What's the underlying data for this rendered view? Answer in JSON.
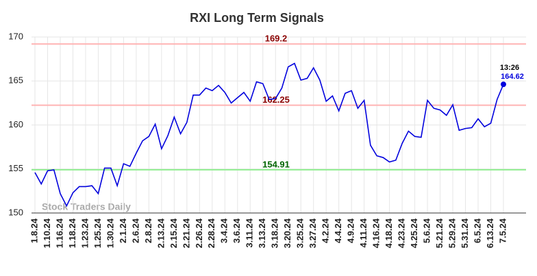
{
  "chart_data": {
    "type": "line",
    "title": "RXI Long Term Signals",
    "watermark": "Stock Traders Daily",
    "categories": [
      "1.8.24",
      null,
      "1.10.24",
      null,
      "1.16.24",
      null,
      "1.18.24",
      null,
      "1.23.24",
      null,
      "1.25.24",
      null,
      "1.30.24",
      null,
      "2.1.24",
      null,
      "2.6.24",
      null,
      "2.8.24",
      null,
      "2.13.24",
      null,
      "2.15.24",
      null,
      "2.21.24",
      null,
      "2.26.24",
      null,
      "2.28.24",
      null,
      "3.4.24",
      null,
      "3.6.24",
      null,
      "3.11.24",
      null,
      "3.13.24",
      null,
      "3.18.24",
      null,
      "3.20.24",
      null,
      "3.25.24",
      null,
      "3.27.24",
      null,
      "4.2.24",
      null,
      "4.4.24",
      null,
      "4.9.24",
      null,
      "4.11.24",
      null,
      "4.16.24",
      null,
      "4.18.24",
      null,
      "4.23.24",
      null,
      "4.25.24",
      null,
      "5.6.24",
      null,
      "5.21.24",
      null,
      "5.29.24",
      null,
      "5.31.24",
      null,
      "6.5.24",
      null,
      "6.13.24",
      null,
      "7.5.24"
    ],
    "series": [
      {
        "color": "#0000dd",
        "values": [
          154.6,
          153.3,
          154.8,
          154.9,
          152.2,
          150.8,
          152.3,
          153.0,
          153.0,
          153.1,
          152.2,
          155.1,
          155.1,
          153.1,
          155.6,
          155.3,
          156.8,
          158.2,
          158.7,
          160.1,
          157.3,
          158.8,
          160.9,
          159.0,
          160.3,
          163.4,
          163.4,
          164.2,
          163.9,
          164.5,
          163.7,
          162.5,
          163.1,
          163.7,
          162.7,
          164.9,
          164.7,
          162.9,
          163.0,
          164.2,
          166.6,
          167.0,
          165.1,
          165.3,
          166.5,
          165.1,
          162.7,
          163.3,
          161.6,
          163.6,
          163.9,
          161.9,
          162.8,
          157.7,
          156.5,
          156.3,
          155.8,
          156.0,
          157.9,
          159.3,
          158.7,
          158.6,
          162.8,
          161.9,
          161.7,
          161.1,
          162.3,
          159.4,
          159.6,
          159.7,
          160.7,
          159.8,
          160.2,
          162.9,
          164.62
        ]
      }
    ],
    "last_time": "13:26",
    "hlines": [
      {
        "value": 169.2,
        "color": "#ffb3b3",
        "label_color": "#8b0000"
      },
      {
        "value": 162.25,
        "color": "#ffb3b3",
        "label_color": "#8b0000"
      },
      {
        "value": 154.91,
        "color": "#90ee90",
        "label_color": "#006400"
      }
    ],
    "ylim": [
      150,
      170
    ],
    "yticks": [
      150,
      155,
      160,
      165,
      170
    ],
    "grid": true
  }
}
